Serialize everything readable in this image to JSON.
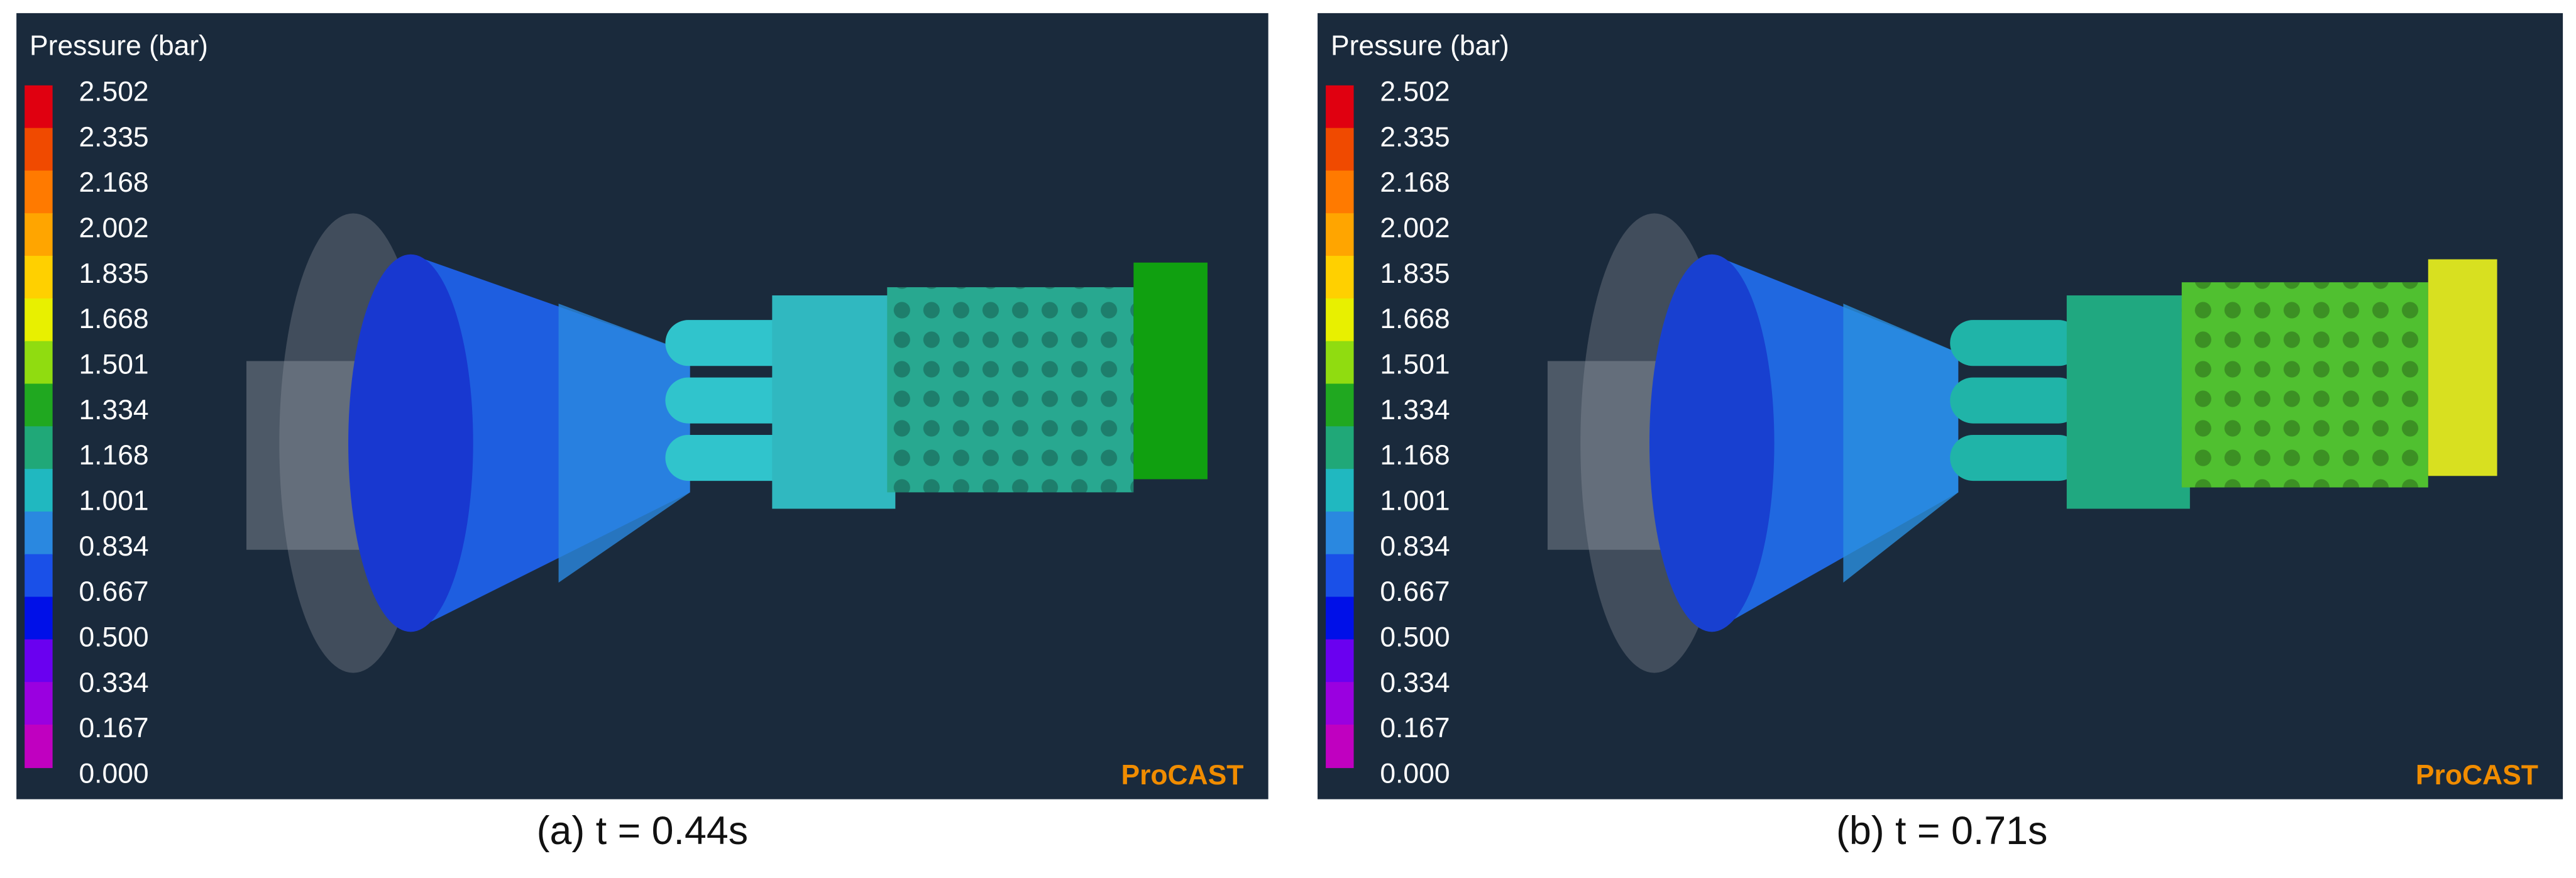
{
  "panels": [
    {
      "legend_title": "Pressure (bar)",
      "legend_labels": [
        "2.502",
        "2.335",
        "2.168",
        "2.002",
        "1.835",
        "1.668",
        "1.501",
        "1.334",
        "1.168",
        "1.001",
        "0.834",
        "0.667",
        "0.500",
        "0.334",
        "0.167",
        "0.000"
      ],
      "legend_colors": [
        "#e00010",
        "#f04a00",
        "#ff7a00",
        "#ffa500",
        "#ffd000",
        "#e8f000",
        "#90dc10",
        "#20a820",
        "#20a878",
        "#20b8c0",
        "#2a88e0",
        "#1a50e8",
        "#0010e8",
        "#6a00f0",
        "#9a00e0",
        "#c000c0"
      ],
      "brand": "ProCAST",
      "caption": "(a) t = 0.44s"
    },
    {
      "legend_title": "Pressure (bar)",
      "legend_labels": [
        "2.502",
        "2.335",
        "2.168",
        "2.002",
        "1.835",
        "1.668",
        "1.501",
        "1.334",
        "1.168",
        "1.001",
        "0.834",
        "0.667",
        "0.500",
        "0.334",
        "0.167",
        "0.000"
      ],
      "legend_colors": [
        "#e00010",
        "#f04a00",
        "#ff7a00",
        "#ffa500",
        "#ffd000",
        "#e8f000",
        "#90dc10",
        "#20a820",
        "#20a878",
        "#20b8c0",
        "#2a88e0",
        "#1a50e8",
        "#0010e8",
        "#6a00f0",
        "#9a00e0",
        "#c000c0"
      ],
      "brand": "ProCAST",
      "caption": "(b) t = 0.71s"
    }
  ]
}
